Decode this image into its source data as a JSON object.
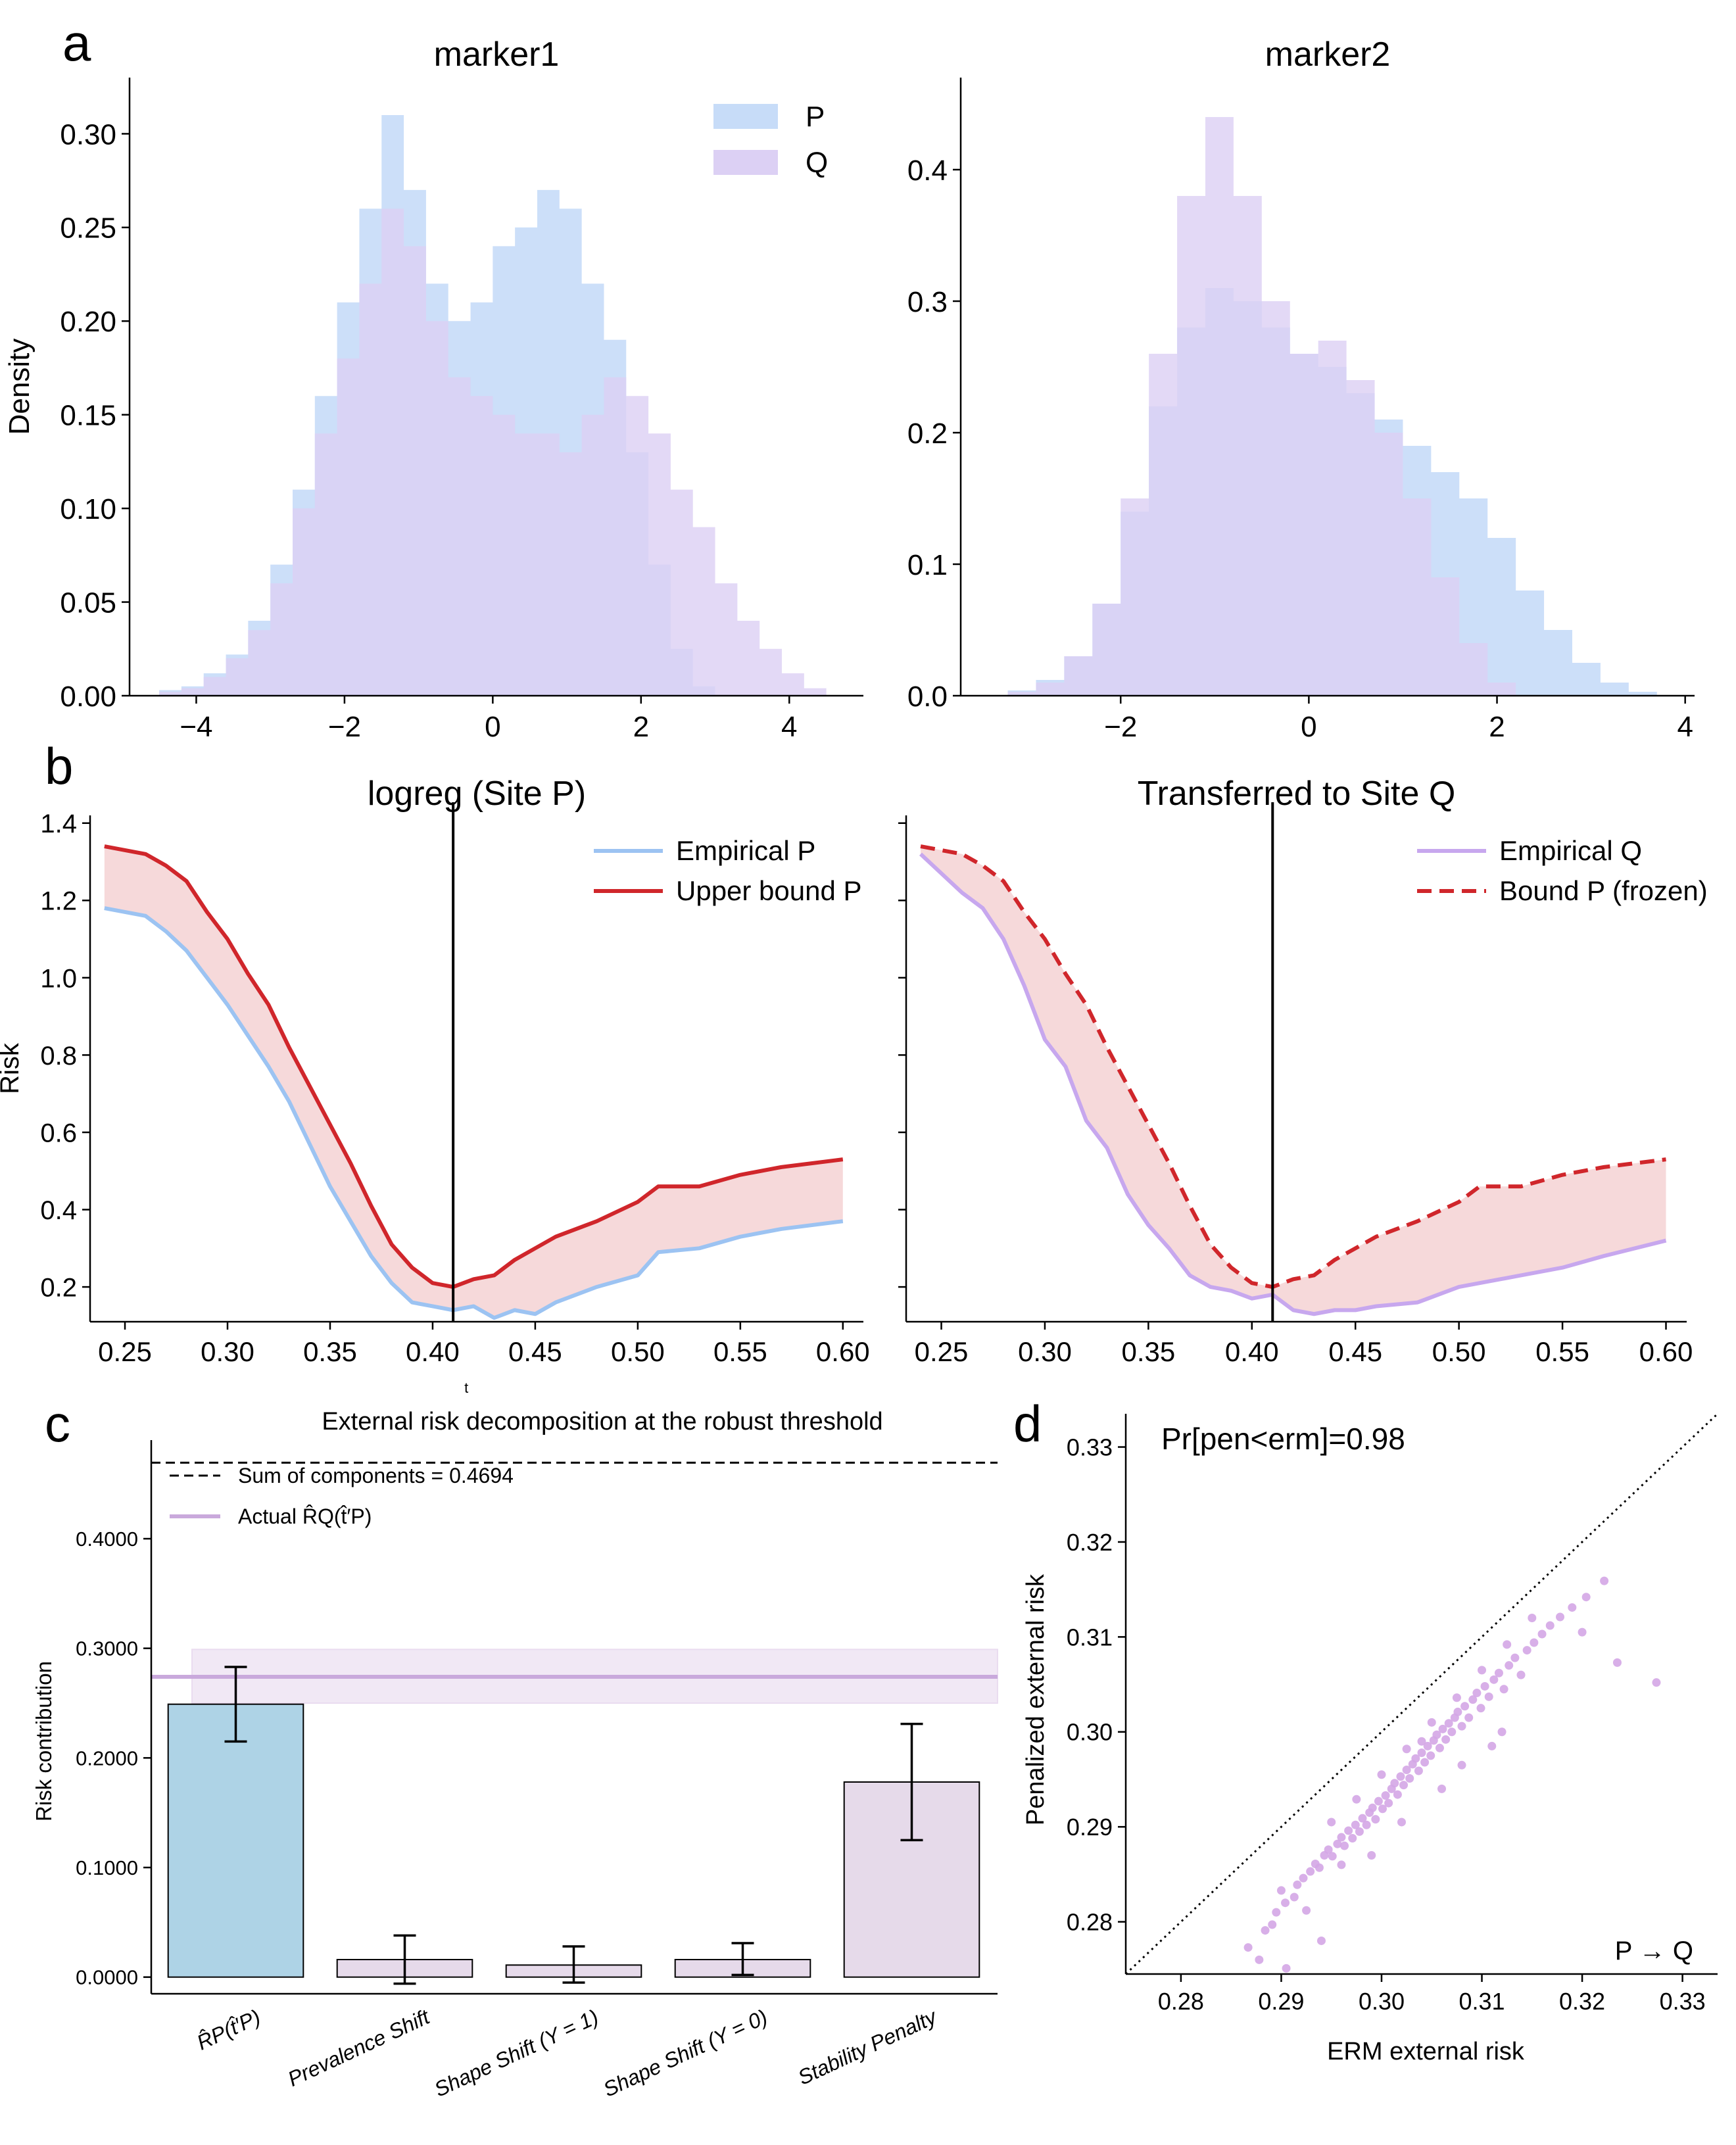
{
  "colors": {
    "p_fill": "#c7dcf8",
    "q_fill": "#dcd0f4",
    "emp_p": "#9cc3f2",
    "bound_p": "#d0262b",
    "emp_q": "#c7a7ee",
    "band_fill": "#f5d2d4",
    "bar_rp": "#aed3e6",
    "bar_other": "#e6daea",
    "actual_line": "#c9a9dc",
    "actual_band": "#f1e8f5",
    "scatter": "#d4a6e6"
  },
  "chart_data": [
    {
      "panel_label": "a",
      "type": "histogram",
      "title": "marker1",
      "xlabel": "",
      "ylabel": "Density",
      "xlim": [
        -4.9,
        5.0
      ],
      "ylim": [
        0,
        0.33
      ],
      "xticks": [
        -4,
        -2,
        0,
        2,
        4
      ],
      "xtick_labels": [
        "−4",
        "−2",
        "0",
        "2",
        "4"
      ],
      "yticks": [
        0,
        0.05,
        0.1,
        0.15,
        0.2,
        0.25,
        0.3
      ],
      "ytick_labels": [
        "0.00",
        "0.05",
        "0.10",
        "0.15",
        "0.20",
        "0.25",
        "0.30"
      ],
      "legend": [
        "P",
        "Q"
      ],
      "legend_position": "top-right",
      "series": [
        {
          "name": "P",
          "edges": [
            -4.5,
            -4.2,
            -3.9,
            -3.6,
            -3.3,
            -3.0,
            -2.7,
            -2.4,
            -2.1,
            -1.8,
            -1.5,
            -1.2,
            -0.9,
            -0.6,
            -0.3,
            0.0,
            0.3,
            0.6,
            0.9,
            1.2,
            1.5,
            1.8,
            2.1,
            2.4,
            2.7,
            3.0
          ],
          "values": [
            0.003,
            0.005,
            0.012,
            0.022,
            0.04,
            0.07,
            0.11,
            0.16,
            0.21,
            0.26,
            0.31,
            0.27,
            0.22,
            0.2,
            0.21,
            0.24,
            0.25,
            0.27,
            0.26,
            0.22,
            0.19,
            0.13,
            0.07,
            0.025,
            0.005
          ]
        },
        {
          "name": "Q",
          "edges": [
            -4.5,
            -4.2,
            -3.9,
            -3.6,
            -3.3,
            -3.0,
            -2.7,
            -2.4,
            -2.1,
            -1.8,
            -1.5,
            -1.2,
            -0.9,
            -0.6,
            -0.3,
            0.0,
            0.3,
            0.6,
            0.9,
            1.2,
            1.5,
            1.8,
            2.1,
            2.4,
            2.7,
            3.0,
            3.3,
            3.6,
            3.9,
            4.2,
            4.5
          ],
          "values": [
            0.002,
            0.004,
            0.01,
            0.02,
            0.035,
            0.06,
            0.1,
            0.14,
            0.18,
            0.22,
            0.26,
            0.24,
            0.2,
            0.17,
            0.16,
            0.15,
            0.14,
            0.14,
            0.13,
            0.15,
            0.17,
            0.16,
            0.14,
            0.11,
            0.09,
            0.06,
            0.04,
            0.025,
            0.012,
            0.004
          ]
        }
      ]
    },
    {
      "panel_label": "",
      "type": "histogram",
      "title": "marker2",
      "xlabel": "",
      "ylabel": "",
      "xlim": [
        -3.7,
        4.1
      ],
      "ylim": [
        0,
        0.47
      ],
      "xticks": [
        -2,
        0,
        2,
        4
      ],
      "xtick_labels": [
        "−2",
        "0",
        "2",
        "4"
      ],
      "yticks": [
        0,
        0.1,
        0.2,
        0.3,
        0.4
      ],
      "ytick_labels": [
        "0.0",
        "0.1",
        "0.2",
        "0.3",
        "0.4"
      ],
      "series": [
        {
          "name": "P",
          "edges": [
            -3.2,
            -2.9,
            -2.6,
            -2.3,
            -2.0,
            -1.7,
            -1.4,
            -1.1,
            -0.8,
            -0.5,
            -0.2,
            0.1,
            0.4,
            0.7,
            1.0,
            1.3,
            1.6,
            1.9,
            2.2,
            2.5,
            2.8,
            3.1,
            3.4,
            3.7
          ],
          "values": [
            0.004,
            0.012,
            0.03,
            0.07,
            0.14,
            0.22,
            0.28,
            0.31,
            0.3,
            0.28,
            0.26,
            0.25,
            0.23,
            0.21,
            0.19,
            0.17,
            0.15,
            0.12,
            0.08,
            0.05,
            0.025,
            0.01,
            0.003
          ]
        },
        {
          "name": "Q",
          "edges": [
            -3.2,
            -2.9,
            -2.6,
            -2.3,
            -2.0,
            -1.7,
            -1.4,
            -1.1,
            -0.8,
            -0.5,
            -0.2,
            0.1,
            0.4,
            0.7,
            1.0,
            1.3,
            1.6,
            1.9,
            2.2
          ],
          "values": [
            0.003,
            0.01,
            0.03,
            0.07,
            0.15,
            0.26,
            0.38,
            0.44,
            0.38,
            0.3,
            0.26,
            0.27,
            0.24,
            0.2,
            0.15,
            0.09,
            0.04,
            0.01
          ]
        }
      ]
    },
    {
      "panel_label": "b",
      "type": "line",
      "title": "logreg (Site P)",
      "xlabel": "t",
      "ylabel": "Risk",
      "xlim": [
        0.233,
        0.61
      ],
      "ylim": [
        0.11,
        1.42
      ],
      "xticks": [
        0.25,
        0.3,
        0.35,
        0.4,
        0.45,
        0.5,
        0.55,
        0.6
      ],
      "xtick_labels": [
        "0.25",
        "0.30",
        "0.35",
        "0.40",
        "0.45",
        "0.50",
        "0.55",
        "0.60"
      ],
      "yticks": [
        0.2,
        0.4,
        0.6,
        0.8,
        1.0,
        1.2,
        1.4
      ],
      "ytick_labels": [
        "0.2",
        "0.4",
        "0.6",
        "0.8",
        "1.0",
        "1.2",
        "1.4"
      ],
      "vline_x": 0.41,
      "legend": [
        "Empirical P",
        "Upper bound P"
      ],
      "legend_position": "top-right",
      "x": [
        0.24,
        0.26,
        0.27,
        0.28,
        0.29,
        0.3,
        0.31,
        0.32,
        0.33,
        0.34,
        0.35,
        0.36,
        0.37,
        0.38,
        0.39,
        0.4,
        0.41,
        0.42,
        0.43,
        0.44,
        0.45,
        0.46,
        0.48,
        0.5,
        0.51,
        0.53,
        0.55,
        0.57,
        0.6
      ],
      "series": [
        {
          "name": "Empirical P",
          "values": [
            1.18,
            1.16,
            1.12,
            1.07,
            1.0,
            0.93,
            0.85,
            0.77,
            0.68,
            0.57,
            0.46,
            0.37,
            0.28,
            0.21,
            0.16,
            0.15,
            0.14,
            0.15,
            0.12,
            0.14,
            0.13,
            0.16,
            0.2,
            0.23,
            0.29,
            0.3,
            0.33,
            0.35,
            0.37
          ]
        },
        {
          "name": "Upper bound P",
          "values": [
            1.34,
            1.32,
            1.29,
            1.25,
            1.17,
            1.1,
            1.01,
            0.93,
            0.82,
            0.72,
            0.62,
            0.52,
            0.41,
            0.31,
            0.25,
            0.21,
            0.2,
            0.22,
            0.23,
            0.27,
            0.3,
            0.33,
            0.37,
            0.42,
            0.46,
            0.46,
            0.49,
            0.51,
            0.53
          ]
        }
      ]
    },
    {
      "panel_label": "",
      "type": "line",
      "title": "Transferred to Site Q",
      "xlabel": "",
      "ylabel": "",
      "xlim": [
        0.233,
        0.61
      ],
      "ylim": [
        0.11,
        1.42
      ],
      "xticks": [
        0.25,
        0.3,
        0.35,
        0.4,
        0.45,
        0.5,
        0.55,
        0.6
      ],
      "xtick_labels": [
        "0.25",
        "0.30",
        "0.35",
        "0.40",
        "0.45",
        "0.50",
        "0.55",
        "0.60"
      ],
      "yticks": [
        0.2,
        0.4,
        0.6,
        0.8,
        1.0,
        1.2,
        1.4
      ],
      "vline_x": 0.41,
      "legend": [
        "Empirical Q",
        "Bound P (frozen)"
      ],
      "legend_position": "top-right",
      "x": [
        0.24,
        0.26,
        0.27,
        0.28,
        0.29,
        0.3,
        0.31,
        0.32,
        0.33,
        0.34,
        0.35,
        0.36,
        0.37,
        0.38,
        0.39,
        0.4,
        0.41,
        0.42,
        0.43,
        0.44,
        0.45,
        0.46,
        0.48,
        0.5,
        0.51,
        0.53,
        0.55,
        0.57,
        0.6
      ],
      "series": [
        {
          "name": "Empirical Q",
          "values": [
            1.32,
            1.22,
            1.18,
            1.1,
            0.98,
            0.84,
            0.77,
            0.63,
            0.56,
            0.44,
            0.36,
            0.3,
            0.23,
            0.2,
            0.19,
            0.17,
            0.18,
            0.14,
            0.13,
            0.14,
            0.14,
            0.15,
            0.16,
            0.2,
            0.21,
            0.23,
            0.25,
            0.28,
            0.32
          ]
        },
        {
          "name": "Bound P (frozen)",
          "values": [
            1.34,
            1.32,
            1.29,
            1.25,
            1.17,
            1.1,
            1.01,
            0.93,
            0.82,
            0.72,
            0.62,
            0.52,
            0.41,
            0.31,
            0.25,
            0.21,
            0.2,
            0.22,
            0.23,
            0.27,
            0.3,
            0.33,
            0.37,
            0.42,
            0.46,
            0.46,
            0.49,
            0.51,
            0.53
          ]
        }
      ]
    },
    {
      "panel_label": "c",
      "type": "bar",
      "title": "External risk decomposition at the robust threshold",
      "xlabel": "",
      "ylabel": "Risk contribution",
      "ylim": [
        -0.002,
        0.49
      ],
      "yticks": [
        0,
        0.1,
        0.2,
        0.3,
        0.4
      ],
      "ytick_labels": [
        "0.0000",
        "0.1000",
        "0.2000",
        "0.3000",
        "0.4000"
      ],
      "categories": [
        "R̂P(t̂′P)",
        "Prevalence Shift",
        "Shape Shift (Y = 1)",
        "Shape Shift (Y = 0)",
        "Stability Penalty"
      ],
      "values": [
        0.249,
        0.016,
        0.011,
        0.016,
        0.178
      ],
      "error_low": [
        0.215,
        -0.006,
        -0.005,
        0.002,
        0.125
      ],
      "error_high": [
        0.283,
        0.038,
        0.028,
        0.031,
        0.231
      ],
      "sum_line": 0.4694,
      "sum_label": "Sum of components = 0.4694",
      "actual_value": 0.274,
      "actual_band": [
        0.25,
        0.299
      ],
      "actual_label": "Actual R̂Q(t̂′P)",
      "legend_position": "top-left"
    },
    {
      "panel_label": "d",
      "type": "scatter",
      "title": "",
      "annotation": "Pr[pen<erm]=0.98",
      "corner_text": "P → Q",
      "xlabel": "ERM external risk",
      "ylabel": "Penalized external risk",
      "xlim": [
        0.2745,
        0.3335
      ],
      "ylim": [
        0.2745,
        0.3335
      ],
      "xticks": [
        0.28,
        0.29,
        0.3,
        0.31,
        0.32,
        0.33
      ],
      "xtick_labels": [
        "0.28",
        "0.29",
        "0.30",
        "0.31",
        "0.32",
        "0.33"
      ],
      "yticks": [
        0.28,
        0.29,
        0.3,
        0.31,
        0.32,
        0.33
      ],
      "ytick_labels": [
        "0.28",
        "0.29",
        "0.30",
        "0.31",
        "0.32",
        "0.33"
      ],
      "diagonal": true,
      "points": [
        [
          0.2867,
          0.2773
        ],
        [
          0.2884,
          0.2791
        ],
        [
          0.2891,
          0.2797
        ],
        [
          0.2895,
          0.281
        ],
        [
          0.2904,
          0.282
        ],
        [
          0.2913,
          0.2826
        ],
        [
          0.2916,
          0.2839
        ],
        [
          0.2922,
          0.2846
        ],
        [
          0.2929,
          0.2853
        ],
        [
          0.2934,
          0.2861
        ],
        [
          0.2938,
          0.2857
        ],
        [
          0.2943,
          0.287
        ],
        [
          0.2947,
          0.2876
        ],
        [
          0.2951,
          0.2869
        ],
        [
          0.2956,
          0.2882
        ],
        [
          0.296,
          0.2889
        ],
        [
          0.2963,
          0.288
        ],
        [
          0.2967,
          0.2896
        ],
        [
          0.2971,
          0.2888
        ],
        [
          0.2974,
          0.2902
        ],
        [
          0.2978,
          0.2895
        ],
        [
          0.2981,
          0.2909
        ],
        [
          0.2985,
          0.2902
        ],
        [
          0.2988,
          0.2915
        ],
        [
          0.2991,
          0.292
        ],
        [
          0.2994,
          0.2908
        ],
        [
          0.2997,
          0.2927
        ],
        [
          0.3001,
          0.2919
        ],
        [
          0.3004,
          0.2933
        ],
        [
          0.3007,
          0.2925
        ],
        [
          0.301,
          0.294
        ],
        [
          0.3013,
          0.2946
        ],
        [
          0.3016,
          0.2934
        ],
        [
          0.3019,
          0.2953
        ],
        [
          0.3022,
          0.2944
        ],
        [
          0.3025,
          0.296
        ],
        [
          0.3028,
          0.2951
        ],
        [
          0.3031,
          0.2966
        ],
        [
          0.3034,
          0.2972
        ],
        [
          0.3037,
          0.2959
        ],
        [
          0.304,
          0.2978
        ],
        [
          0.3043,
          0.2968
        ],
        [
          0.3046,
          0.2985
        ],
        [
          0.3049,
          0.2975
        ],
        [
          0.3052,
          0.2991
        ],
        [
          0.3055,
          0.2997
        ],
        [
          0.3058,
          0.2983
        ],
        [
          0.3061,
          0.3003
        ],
        [
          0.3064,
          0.2992
        ],
        [
          0.3067,
          0.3009
        ],
        [
          0.307,
          0.3
        ],
        [
          0.3073,
          0.3015
        ],
        [
          0.3076,
          0.3021
        ],
        [
          0.308,
          0.3006
        ],
        [
          0.3083,
          0.3027
        ],
        [
          0.3087,
          0.3015
        ],
        [
          0.3091,
          0.3034
        ],
        [
          0.3095,
          0.3041
        ],
        [
          0.3099,
          0.3025
        ],
        [
          0.3103,
          0.3048
        ],
        [
          0.3107,
          0.3037
        ],
        [
          0.3112,
          0.3055
        ],
        [
          0.3117,
          0.3062
        ],
        [
          0.3122,
          0.3045
        ],
        [
          0.3127,
          0.307
        ],
        [
          0.3133,
          0.3078
        ],
        [
          0.3139,
          0.306
        ],
        [
          0.3145,
          0.3086
        ],
        [
          0.3152,
          0.3094
        ],
        [
          0.316,
          0.3103
        ],
        [
          0.3168,
          0.3112
        ],
        [
          0.3178,
          0.3121
        ],
        [
          0.319,
          0.3131
        ],
        [
          0.3204,
          0.3142
        ],
        [
          0.3222,
          0.3159
        ],
        [
          0.2878,
          0.276
        ],
        [
          0.29,
          0.2833
        ],
        [
          0.2925,
          0.2812
        ],
        [
          0.295,
          0.2905
        ],
        [
          0.2975,
          0.2929
        ],
        [
          0.3,
          0.2955
        ],
        [
          0.3025,
          0.2982
        ],
        [
          0.305,
          0.301
        ],
        [
          0.3075,
          0.3036
        ],
        [
          0.31,
          0.3065
        ],
        [
          0.3125,
          0.3092
        ],
        [
          0.315,
          0.312
        ],
        [
          0.304,
          0.299
        ],
        [
          0.299,
          0.287
        ],
        [
          0.306,
          0.294
        ],
        [
          0.311,
          0.2985
        ],
        [
          0.302,
          0.2905
        ],
        [
          0.296,
          0.286
        ],
        [
          0.308,
          0.2965
        ],
        [
          0.32,
          0.3105
        ],
        [
          0.3235,
          0.3073
        ],
        [
          0.3274,
          0.3052
        ],
        [
          0.2905,
          0.2751
        ],
        [
          0.294,
          0.278
        ],
        [
          0.312,
          0.3
        ]
      ]
    }
  ]
}
